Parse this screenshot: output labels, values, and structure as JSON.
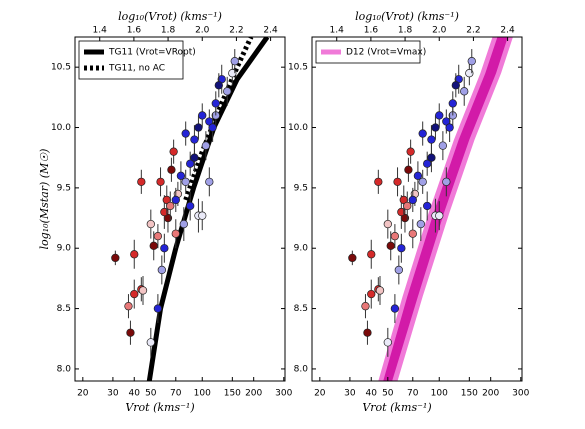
{
  "chart_data": [
    {
      "type": "scatter",
      "xscale": "log",
      "xlabel": "Vrot   (kms⁻¹)",
      "ylabel": "log₁₀(Mstar)    (M☉)",
      "x2label": "log₁₀(Vrot)   (kms⁻¹)",
      "xlim": [
        18,
        305
      ],
      "xticks": [
        20,
        30,
        40,
        50,
        70,
        100,
        150,
        200,
        300
      ],
      "x2lim": [
        1.2553,
        2.4843
      ],
      "x2ticks": [
        1.4,
        1.6,
        1.8,
        {
          "value": 2.0,
          "label": "2.0"
        },
        2.2,
        2.4
      ],
      "ylim": [
        7.9,
        10.75
      ],
      "yticks": [
        {
          "value": 8.0,
          "label": "8.0"
        },
        8.5,
        {
          "value": 9.0,
          "label": "9.0"
        },
        9.5,
        {
          "value": 10.0,
          "label": "10.0"
        },
        10.5
      ],
      "legend": "upper left",
      "series": [
        {
          "color": "#7a0a0a",
          "x": [
            31,
            38,
            52,
            63,
            66
          ],
          "values": [
            8.92,
            8.3,
            9.02,
            9.25,
            9.65
          ],
          "yerr": [
            0.06,
            0.1,
            0.12,
            0.12,
            0.1
          ]
        },
        {
          "color": "#d42a2a",
          "x": [
            40,
            40,
            44,
            44,
            57,
            60,
            62,
            68
          ],
          "values": [
            8.62,
            8.95,
            8.66,
            9.55,
            9.55,
            9.3,
            9.4,
            9.8
          ],
          "yerr": [
            0.12,
            0.12,
            0.1,
            0.1,
            0.12,
            0.14,
            0.12,
            0.1
          ]
        },
        {
          "color": "#e87878",
          "x": [
            37,
            65,
            70,
            55
          ],
          "values": [
            8.52,
            9.35,
            9.12,
            9.1
          ],
          "yerr": [
            0.1,
            0.12,
            0.12,
            0.1
          ]
        },
        {
          "color": "#f2c4c4",
          "x": [
            45,
            72,
            50
          ],
          "values": [
            8.65,
            9.45,
            9.2
          ],
          "yerr": [
            0.12,
            0.1,
            0.12
          ]
        },
        {
          "color": "#eaeaf8",
          "x": [
            50,
            95,
            100,
            150
          ],
          "values": [
            8.22,
            9.27,
            9.27,
            10.45
          ],
          "yerr": [
            0.12,
            0.14,
            0.12,
            0.1
          ]
        },
        {
          "color": "#a0a0e6",
          "x": [
            58,
            80,
            105,
            110,
            78,
            120,
            140,
            155
          ],
          "values": [
            8.82,
            9.55,
            9.85,
            9.55,
            9.2,
            10.1,
            10.3,
            10.55
          ],
          "yerr": [
            0.12,
            0.1,
            0.12,
            0.12,
            0.14,
            0.1,
            0.12,
            0.1
          ]
        },
        {
          "color": "#2424d6",
          "x": [
            55,
            60,
            70,
            75,
            85,
            90,
            100,
            110,
            115,
            120,
            130,
            85,
            80
          ],
          "values": [
            8.5,
            9.0,
            9.4,
            9.6,
            9.7,
            9.9,
            10.1,
            10.05,
            10.0,
            10.2,
            10.4,
            9.35,
            9.95
          ],
          "yerr": [
            0.12,
            0.12,
            0.1,
            0.12,
            0.1,
            0.12,
            0.1,
            0.1,
            0.12,
            0.1,
            0.12,
            0.12,
            0.1
          ]
        },
        {
          "color": "#12127a",
          "x": [
            95,
            125,
            90
          ],
          "values": [
            10.0,
            10.35,
            9.75
          ],
          "yerr": [
            0.1,
            0.1,
            0.12
          ]
        }
      ],
      "lines": [
        {
          "name": "TG11  (Vrot=VRopt)",
          "color": "#000000",
          "style": "solid",
          "x": [
            49,
            57,
            70,
            89,
            117,
            160,
            240
          ],
          "values": [
            7.9,
            8.5,
            9.0,
            9.5,
            10.0,
            10.4,
            10.75
          ]
        },
        {
          "name": "TG11, no AC",
          "color": "#000000",
          "style": "dotted",
          "x": [
            80,
            100,
            130,
            160,
            193
          ],
          "values": [
            9.4,
            9.8,
            10.2,
            10.5,
            10.75
          ]
        }
      ]
    },
    {
      "type": "scatter",
      "xscale": "log",
      "xlabel": "Vrot   (kms⁻¹)",
      "x2label": "log₁₀(Vrot)   (kms⁻¹)",
      "xlim": [
        18,
        305
      ],
      "xticks": [
        20,
        30,
        40,
        50,
        70,
        100,
        150,
        200,
        300
      ],
      "x2lim": [
        1.2553,
        2.4843
      ],
      "x2ticks": [
        1.4,
        1.6,
        1.8,
        {
          "value": 2.0,
          "label": "2.0"
        },
        2.2,
        2.4
      ],
      "ylim": [
        7.9,
        10.75
      ],
      "yticks": [
        {
          "value": 8.0,
          "label": "8.0"
        },
        8.5,
        {
          "value": 9.0,
          "label": "9.0"
        },
        9.5,
        {
          "value": 10.0,
          "label": "10.0"
        },
        10.5
      ],
      "legend": "upper left",
      "series": [
        {
          "color": "#7a0a0a",
          "x": [
            31,
            38,
            52,
            63,
            66
          ],
          "values": [
            8.92,
            8.3,
            9.02,
            9.25,
            9.65
          ],
          "yerr": [
            0.06,
            0.1,
            0.12,
            0.12,
            0.1
          ]
        },
        {
          "color": "#d42a2a",
          "x": [
            40,
            40,
            44,
            44,
            57,
            60,
            62,
            68
          ],
          "values": [
            8.62,
            8.95,
            8.66,
            9.55,
            9.55,
            9.3,
            9.4,
            9.8
          ],
          "yerr": [
            0.12,
            0.12,
            0.1,
            0.1,
            0.12,
            0.14,
            0.12,
            0.1
          ]
        },
        {
          "color": "#e87878",
          "x": [
            37,
            65,
            70,
            55
          ],
          "values": [
            8.52,
            9.35,
            9.12,
            9.1
          ],
          "yerr": [
            0.1,
            0.12,
            0.12,
            0.1
          ]
        },
        {
          "color": "#f2c4c4",
          "x": [
            45,
            72,
            50
          ],
          "values": [
            8.65,
            9.45,
            9.2
          ],
          "yerr": [
            0.12,
            0.1,
            0.12
          ]
        },
        {
          "color": "#eaeaf8",
          "x": [
            50,
            95,
            100,
            150
          ],
          "values": [
            8.22,
            9.27,
            9.27,
            10.45
          ],
          "yerr": [
            0.12,
            0.14,
            0.12,
            0.1
          ]
        },
        {
          "color": "#a0a0e6",
          "x": [
            58,
            80,
            105,
            110,
            78,
            120,
            140,
            155
          ],
          "values": [
            8.82,
            9.55,
            9.85,
            9.55,
            9.2,
            10.1,
            10.3,
            10.55
          ],
          "yerr": [
            0.12,
            0.1,
            0.12,
            0.12,
            0.14,
            0.1,
            0.12,
            0.1
          ]
        },
        {
          "color": "#2424d6",
          "x": [
            55,
            60,
            70,
            75,
            85,
            90,
            100,
            110,
            115,
            120,
            130,
            85,
            80
          ],
          "values": [
            8.5,
            9.0,
            9.4,
            9.6,
            9.7,
            9.9,
            10.1,
            10.05,
            10.0,
            10.2,
            10.4,
            9.35,
            9.95
          ],
          "yerr": [
            0.12,
            0.12,
            0.1,
            0.12,
            0.1,
            0.12,
            0.1,
            0.1,
            0.12,
            0.1,
            0.12,
            0.12,
            0.1
          ]
        },
        {
          "color": "#12127a",
          "x": [
            95,
            125,
            90
          ],
          "values": [
            10.0,
            10.35,
            9.75
          ],
          "yerr": [
            0.1,
            0.1,
            0.12
          ]
        }
      ],
      "bands": [
        {
          "name": "D12  (Vrot=Vmax)",
          "color": "#f07ad8",
          "values": [
            7.9,
            8.6,
            9.3,
            9.9,
            10.45,
            10.75
          ],
          "x_lower": [
            44,
            61,
            87,
            122,
            174,
            205
          ],
          "x_upper": [
            57,
            80,
            115,
            161,
            230,
            270
          ]
        },
        {
          "color": "#d21aa8",
          "values": [
            7.9,
            8.6,
            9.3,
            9.9,
            10.45,
            10.75
          ],
          "x_lower": [
            47,
            65,
            93,
            130,
            186,
            219
          ],
          "x_upper": [
            53,
            75,
            107,
            150,
            215,
            252
          ]
        }
      ]
    }
  ]
}
